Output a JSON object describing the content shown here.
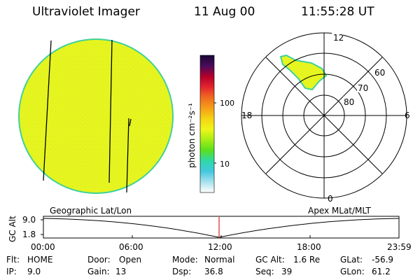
{
  "header": {
    "title": "Ultraviolet Imager",
    "date": "11 Aug 00",
    "time": "11:55:28 UT"
  },
  "colors": {
    "disk": "#e6f51f",
    "disk_edge": "#3fd19a",
    "stripe": "#000000",
    "orbit_marker": "#e0242a"
  },
  "colorbar": {
    "label": "photon cm⁻²s⁻¹",
    "ticks": [
      "100",
      "10"
    ],
    "stops": [
      "#1a0633",
      "#4a0b5c",
      "#b3002a",
      "#e2252e",
      "#f06b1f",
      "#f59f19",
      "#f5d313",
      "#f0f51b",
      "#a8ee16",
      "#5ae01c",
      "#2ed8a8",
      "#44c8e0",
      "#a8e1ed",
      "#ffffff"
    ]
  },
  "polar": {
    "mlt_labels": {
      "top": "12",
      "right": "6",
      "bottom": "0",
      "left": "18"
    },
    "lat_labels": [
      "60",
      "70",
      "80"
    ]
  },
  "orbit": {
    "left_label": "Geographic Lat/Lon",
    "right_label": "Apex MLat/MLT",
    "y_axis_label": "GC Alt",
    "y_ticks": [
      "9.0",
      "1.8"
    ],
    "time_ticks": [
      "00:00",
      "06:00",
      "12:00",
      "18:00",
      "23:59"
    ]
  },
  "status": {
    "row1": [
      {
        "key": "Flt:",
        "val": "HOME"
      },
      {
        "key": "Door:",
        "val": "Open"
      },
      {
        "key": "Mode:",
        "val": "Normal"
      },
      {
        "key": "GC Alt:",
        "val": "1.6 Re"
      },
      {
        "key": "GLat:",
        "val": "-56.9"
      }
    ],
    "row2": [
      {
        "key": "IP:",
        "val": "9.0"
      },
      {
        "key": "Gain:",
        "val": "13"
      },
      {
        "key": "Dsp:",
        "val": "36.8"
      },
      {
        "key": "Seq:",
        "val": "39"
      },
      {
        "key": "GLon:",
        "val": "61.2"
      }
    ]
  }
}
